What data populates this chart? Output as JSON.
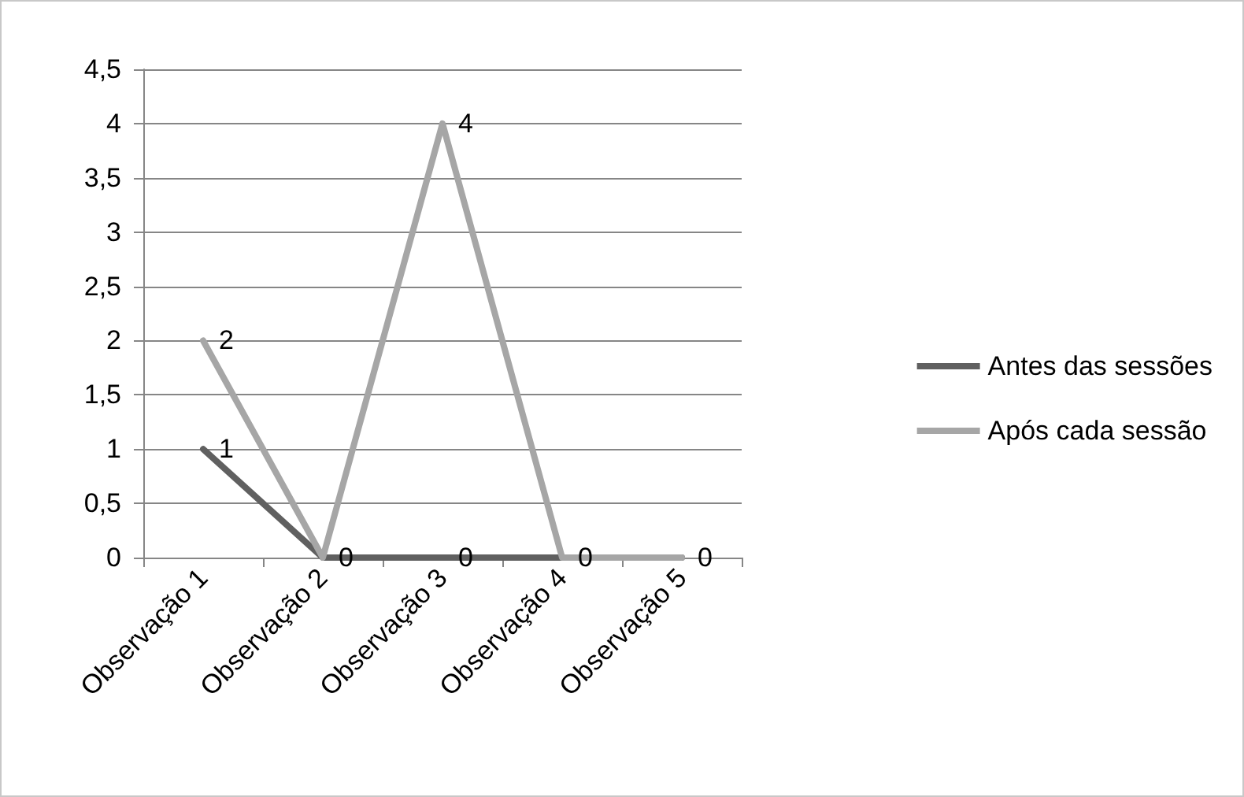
{
  "chart_data": {
    "type": "line",
    "categories": [
      "Observação 1",
      "Observação 2",
      "Observação 3",
      "Observação 4",
      "Observação 5"
    ],
    "series": [
      {
        "name": "Antes das sessões",
        "color": "#606060",
        "values": [
          1,
          0,
          0,
          0,
          0
        ],
        "value_labels": [
          "1",
          "0",
          "0",
          "0",
          "0"
        ]
      },
      {
        "name": "Após cada sessão",
        "color": "#a6a6a6",
        "values": [
          2,
          0,
          4,
          0,
          0
        ],
        "value_labels": [
          "2",
          null,
          "4",
          null,
          null
        ]
      }
    ],
    "ylim": [
      0,
      4.5
    ],
    "yticks": [
      {
        "value": 0,
        "label": "0"
      },
      {
        "value": 0.5,
        "label": "0,5"
      },
      {
        "value": 1,
        "label": "1"
      },
      {
        "value": 1.5,
        "label": "1,5"
      },
      {
        "value": 2,
        "label": "2"
      },
      {
        "value": 2.5,
        "label": "2,5"
      },
      {
        "value": 3,
        "label": "3"
      },
      {
        "value": 3.5,
        "label": "3,5"
      },
      {
        "value": 4,
        "label": "4"
      },
      {
        "value": 4.5,
        "label": "4,5"
      }
    ],
    "grid": "y",
    "legend": "right",
    "marker": "none",
    "line_style": "solid"
  }
}
